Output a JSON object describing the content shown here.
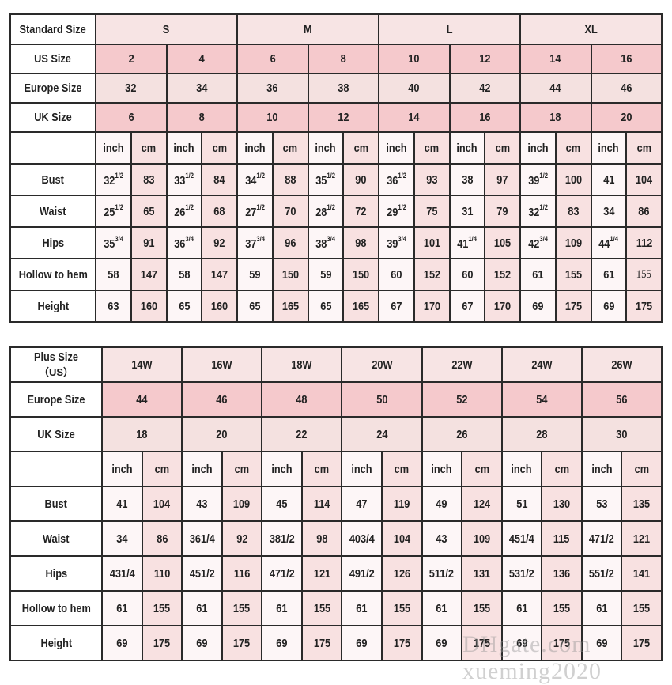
{
  "standard_chart": {
    "label_standard": "Standard Size",
    "standard_sizes": [
      "S",
      "M",
      "L",
      "XL"
    ],
    "label_us": "US Size",
    "us_sizes": [
      "2",
      "4",
      "6",
      "8",
      "10",
      "12",
      "14",
      "16"
    ],
    "label_europe": "Europe Size",
    "europe_sizes": [
      "32",
      "34",
      "36",
      "38",
      "40",
      "42",
      "44",
      "46"
    ],
    "label_uk": "UK Size",
    "uk_sizes": [
      "6",
      "8",
      "10",
      "12",
      "14",
      "16",
      "18",
      "20"
    ],
    "unit_inch": "inch",
    "unit_cm": "cm",
    "rows": [
      {
        "label": "Bust",
        "values": [
          "32 1/2",
          "83",
          "33 1/2",
          "84",
          "34 1/2",
          "88",
          "35 1/2",
          "90",
          "36 1/2",
          "93",
          "38",
          "97",
          "39 1/2",
          "100",
          "41",
          "104"
        ]
      },
      {
        "label": "Waist",
        "values": [
          "25 1/2",
          "65",
          "26 1/2",
          "68",
          "27 1/2",
          "70",
          "28 1/2",
          "72",
          "29 1/2",
          "75",
          "31",
          "79",
          "32 1/2",
          "83",
          "34",
          "86"
        ]
      },
      {
        "label": "Hips",
        "values": [
          "35 3/4",
          "91",
          "36 3/4",
          "92",
          "37 3/4",
          "96",
          "38 3/4",
          "98",
          "39 3/4",
          "101",
          "41 1/4",
          "105",
          "42 3/4",
          "109",
          "44 1/4",
          "112"
        ]
      },
      {
        "label": "Hollow to hem",
        "values": [
          "58",
          "147",
          "58",
          "147",
          "59",
          "150",
          "59",
          "150",
          "60",
          "152",
          "60",
          "152",
          "61",
          "155",
          "61",
          "155"
        ]
      },
      {
        "label": "Height",
        "values": [
          "63",
          "160",
          "65",
          "160",
          "65",
          "165",
          "65",
          "165",
          "67",
          "170",
          "67",
          "170",
          "69",
          "175",
          "69",
          "175"
        ]
      }
    ]
  },
  "plus_chart": {
    "label_plus": "Plus Size",
    "label_plus_sub": "（US）",
    "plus_sizes": [
      "14W",
      "16W",
      "18W",
      "20W",
      "22W",
      "24W",
      "26W"
    ],
    "label_europe": "Europe Size",
    "europe_sizes": [
      "44",
      "46",
      "48",
      "50",
      "52",
      "54",
      "56"
    ],
    "label_uk": "UK Size",
    "uk_sizes": [
      "18",
      "20",
      "22",
      "24",
      "26",
      "28",
      "30"
    ],
    "unit_inch": "inch",
    "unit_cm": "cm",
    "rows": [
      {
        "label": "Bust",
        "values": [
          "41",
          "104",
          "43",
          "109",
          "45",
          "114",
          "47",
          "119",
          "49",
          "124",
          "51",
          "130",
          "53",
          "135"
        ]
      },
      {
        "label": "Waist",
        "values": [
          "34",
          "86",
          "361/4",
          "92",
          "381/2",
          "98",
          "403/4",
          "104",
          "43",
          "109",
          "451/4",
          "115",
          "471/2",
          "121"
        ]
      },
      {
        "label": "Hips",
        "values": [
          "431/4",
          "110",
          "451/2",
          "116",
          "471/2",
          "121",
          "491/2",
          "126",
          "511/2",
          "131",
          "531/2",
          "136",
          "551/2",
          "141"
        ]
      },
      {
        "label": "Hollow to hem",
        "values": [
          "61",
          "155",
          "61",
          "155",
          "61",
          "155",
          "61",
          "155",
          "61",
          "155",
          "61",
          "155",
          "61",
          "155"
        ]
      },
      {
        "label": "Height",
        "values": [
          "69",
          "175",
          "69",
          "175",
          "69",
          "175",
          "69",
          "175",
          "69",
          "175",
          "69",
          "175",
          "69",
          "175"
        ]
      }
    ]
  },
  "watermark": "DHgate.com  xueming2020",
  "colors": {
    "pink": "#f5c9cc",
    "light_pink": "#f4e1e0",
    "header": "#f7e4e4",
    "cm_column": "#f8e1e1",
    "inch_column": "#fdf6f7",
    "border": "#2a2a2a"
  }
}
